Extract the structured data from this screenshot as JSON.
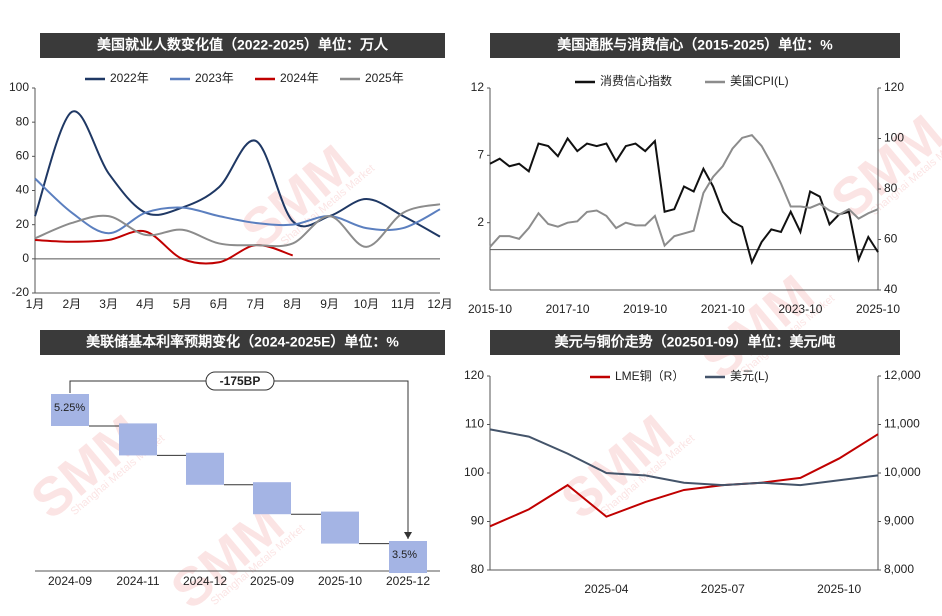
{
  "watermark": {
    "logo": "SMM",
    "text": "Shanghai Metals Market"
  },
  "chart_data": [
    {
      "type": "line",
      "title": "美国就业人数变化值（2022-2025）单位：万人",
      "smooth": true,
      "categories": [
        "1月",
        "2月",
        "3月",
        "4月",
        "5月",
        "6月",
        "7月",
        "8月",
        "9月",
        "10月",
        "11月",
        "12月"
      ],
      "ylim": [
        -20,
        100
      ],
      "yticks": [
        -20,
        0,
        20,
        40,
        60,
        80,
        100
      ],
      "series": [
        {
          "name": "2022年",
          "color": "#1f3864",
          "values": [
            25,
            86,
            50,
            27,
            30,
            42,
            69,
            22,
            25,
            35,
            25,
            13
          ]
        },
        {
          "name": "2023年",
          "color": "#5b7fbf",
          "values": [
            47,
            27,
            15,
            27,
            30,
            25,
            21,
            20,
            25,
            18,
            18,
            29
          ]
        },
        {
          "name": "2024年",
          "color": "#c00000",
          "values": [
            11,
            10,
            11,
            16,
            0,
            -2,
            8,
            2,
            null,
            null,
            null,
            null
          ]
        },
        {
          "name": "2025年",
          "color": "#8c8c8c",
          "values": [
            12,
            21,
            25,
            14,
            17,
            9,
            8,
            9,
            25,
            7,
            27,
            32
          ]
        }
      ]
    },
    {
      "type": "line",
      "title": "美国通胀与消费信心（2015-2025）单位：%",
      "x": [
        "2015-10",
        "2016-01",
        "2016-04",
        "2016-07",
        "2016-10",
        "2017-01",
        "2017-04",
        "2017-07",
        "2017-10",
        "2018-01",
        "2018-04",
        "2018-07",
        "2018-10",
        "2019-01",
        "2019-04",
        "2019-07",
        "2019-10",
        "2020-01",
        "2020-04",
        "2020-07",
        "2020-10",
        "2021-01",
        "2021-04",
        "2021-07",
        "2021-10",
        "2022-01",
        "2022-04",
        "2022-07",
        "2022-10",
        "2023-01",
        "2023-04",
        "2023-07",
        "2023-10",
        "2024-01",
        "2024-04",
        "2024-07",
        "2024-10",
        "2025-01",
        "2025-04",
        "2025-07",
        "2025-10"
      ],
      "xlim": [
        "2015-10",
        "2025-10"
      ],
      "xticks": [
        "2015-10",
        "2017-10",
        "2019-10",
        "2021-10",
        "2023-10",
        "2025-10"
      ],
      "ylim": [
        -3,
        12
      ],
      "yticks": [
        2,
        7,
        12
      ],
      "y2lim": [
        40,
        120
      ],
      "y2ticks": [
        40,
        60,
        80,
        100,
        120
      ],
      "series": [
        {
          "name": "消费信心指数",
          "color": "#111111",
          "axis": "y2",
          "values": [
            90,
            92,
            89,
            90,
            87,
            98,
            97,
            93,
            100,
            95,
            98,
            97,
            98,
            91,
            97,
            98,
            95,
            99,
            71,
            72,
            81,
            79,
            88,
            81,
            71,
            67,
            65,
            51,
            59,
            64,
            63,
            71,
            63,
            79,
            77,
            66,
            70,
            71,
            52,
            61,
            55
          ]
        },
        {
          "name": "美国CPI(L)",
          "color": "#8c8c8c",
          "values": [
            0.2,
            1.0,
            1.0,
            0.8,
            1.6,
            2.7,
            1.9,
            1.7,
            2.0,
            2.1,
            2.8,
            2.9,
            2.5,
            1.6,
            2.0,
            1.8,
            1.8,
            2.5,
            0.3,
            1.0,
            1.2,
            1.4,
            4.2,
            5.4,
            6.2,
            7.5,
            8.3,
            8.5,
            7.7,
            6.4,
            4.9,
            3.2,
            3.2,
            3.1,
            3.4,
            2.9,
            2.6,
            3.0,
            2.3,
            2.7,
            3.0
          ]
        }
      ]
    },
    {
      "type": "waterfall",
      "title": "美联储基本利率预期变化（2024-2025E）单位：%",
      "categories": [
        "2024-09",
        "2024-11",
        "2024-12",
        "2025-09",
        "2025-10",
        "2025-12"
      ],
      "values": [
        5.25,
        4.9,
        4.55,
        4.2,
        3.85,
        3.5
      ],
      "value_labels": [
        "5.25%",
        null,
        null,
        null,
        null,
        "3.5%"
      ],
      "color": "#a4b4e4",
      "annotation": "-175BP"
    },
    {
      "type": "line",
      "title": "美元与铜价走势（202501-09）单位：美元/吨",
      "x": [
        "2025-01",
        "2025-02",
        "2025-03",
        "2025-04",
        "2025-05",
        "2025-06",
        "2025-07",
        "2025-08",
        "2025-09",
        "2025-10",
        "2025-11"
      ],
      "xlim": [
        "2025-01",
        "2025-11"
      ],
      "xticks": [
        "2025-04",
        "2025-07",
        "2025-10"
      ],
      "ylim": [
        80,
        120
      ],
      "yticks": [
        80,
        90,
        100,
        110,
        120
      ],
      "y2lim": [
        8000,
        12000
      ],
      "y2ticks": [
        {
          "value": 8000,
          "label": "8,000"
        },
        {
          "value": 9000,
          "label": "9,000"
        },
        {
          "value": 10000,
          "label": "10,000"
        },
        {
          "value": 11000,
          "label": "11,000"
        },
        {
          "value": 12000,
          "label": "12,000"
        }
      ],
      "series": [
        {
          "name": "LME铜（R）",
          "color": "#c00000",
          "axis": "y2",
          "values": [
            8900,
            9250,
            9750,
            9100,
            9400,
            9650,
            9750,
            9800,
            9900,
            10300,
            10800
          ]
        },
        {
          "name": "美元(L)",
          "color": "#44546a",
          "values": [
            109,
            107.5,
            104,
            100,
            99.5,
            98,
            97.5,
            98,
            97.5,
            98.5,
            99.5
          ]
        }
      ]
    }
  ]
}
